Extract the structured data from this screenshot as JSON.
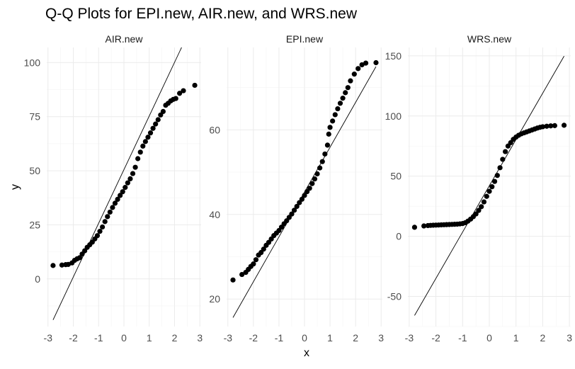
{
  "chart_data": {
    "type": "scatter",
    "title": "Q-Q Plots for EPI.new, AIR.new, and WRS.new",
    "xlabel": "x",
    "ylabel": "y",
    "grid": true,
    "x_ticks": [
      -3,
      -2,
      -1,
      0,
      1,
      2,
      3
    ],
    "xlim": [
      -3.05,
      3.05
    ],
    "panels": [
      {
        "name": "AIR.new",
        "ylim": [
          -22,
          107
        ],
        "y_ticks": [
          0,
          25,
          50,
          75,
          100
        ],
        "line": {
          "slope": 24.8,
          "intercept": 50.5
        },
        "points": [
          [
            -2.8,
            6.2
          ],
          [
            -2.45,
            6.4
          ],
          [
            -2.3,
            6.6
          ],
          [
            -2.2,
            6.7
          ],
          [
            -2.05,
            7.4
          ],
          [
            -1.95,
            8.6
          ],
          [
            -1.85,
            9.3
          ],
          [
            -1.75,
            9.8
          ],
          [
            -1.65,
            11.5
          ],
          [
            -1.55,
            13.0
          ],
          [
            -1.45,
            14.6
          ],
          [
            -1.35,
            15.8
          ],
          [
            -1.25,
            17.0
          ],
          [
            -1.15,
            18.5
          ],
          [
            -1.05,
            20.0
          ],
          [
            -0.95,
            22.0
          ],
          [
            -0.85,
            24.0
          ],
          [
            -0.75,
            26.5
          ],
          [
            -0.65,
            28.8
          ],
          [
            -0.55,
            30.9
          ],
          [
            -0.45,
            33.0
          ],
          [
            -0.35,
            35.0
          ],
          [
            -0.25,
            36.8
          ],
          [
            -0.15,
            38.6
          ],
          [
            -0.05,
            40.3
          ],
          [
            0.05,
            42.3
          ],
          [
            0.15,
            44.4
          ],
          [
            0.25,
            46.3
          ],
          [
            0.35,
            48.7
          ],
          [
            0.45,
            51.6
          ],
          [
            0.55,
            55.6
          ],
          [
            0.65,
            58.6
          ],
          [
            0.75,
            61.4
          ],
          [
            0.85,
            63.5
          ],
          [
            0.95,
            65.5
          ],
          [
            1.05,
            67.5
          ],
          [
            1.15,
            69.6
          ],
          [
            1.25,
            71.6
          ],
          [
            1.35,
            73.6
          ],
          [
            1.45,
            75.8
          ],
          [
            1.55,
            77.4
          ],
          [
            1.65,
            80.3
          ],
          [
            1.75,
            81.2
          ],
          [
            1.85,
            82.3
          ],
          [
            1.95,
            83.0
          ],
          [
            2.05,
            83.4
          ],
          [
            2.2,
            85.8
          ],
          [
            2.35,
            87.0
          ],
          [
            2.8,
            89.5
          ]
        ]
      },
      {
        "name": "EPI.new",
        "ylim": [
          13.5,
          79.5
        ],
        "y_ticks": [
          20,
          40,
          60
        ],
        "line": {
          "slope": 10.6,
          "intercept": 45.3
        },
        "points": [
          [
            -2.8,
            24.5
          ],
          [
            -2.45,
            25.8
          ],
          [
            -2.3,
            26.3
          ],
          [
            -2.2,
            27.0
          ],
          [
            -2.1,
            27.7
          ],
          [
            -2.0,
            28.3
          ],
          [
            -1.9,
            29.3
          ],
          [
            -1.8,
            30.4
          ],
          [
            -1.7,
            31.0
          ],
          [
            -1.6,
            31.8
          ],
          [
            -1.5,
            32.7
          ],
          [
            -1.4,
            33.4
          ],
          [
            -1.3,
            34.2
          ],
          [
            -1.2,
            35.0
          ],
          [
            -1.1,
            35.6
          ],
          [
            -1.0,
            36.2
          ],
          [
            -0.9,
            37.0
          ],
          [
            -0.8,
            37.8
          ],
          [
            -0.7,
            38.5
          ],
          [
            -0.6,
            39.3
          ],
          [
            -0.5,
            40.1
          ],
          [
            -0.4,
            41.0
          ],
          [
            -0.3,
            41.9
          ],
          [
            -0.2,
            42.8
          ],
          [
            -0.1,
            43.6
          ],
          [
            0.0,
            44.5
          ],
          [
            0.1,
            45.4
          ],
          [
            0.2,
            46.2
          ],
          [
            0.3,
            47.3
          ],
          [
            0.4,
            48.4
          ],
          [
            0.5,
            49.6
          ],
          [
            0.6,
            51.0
          ],
          [
            0.7,
            52.5
          ],
          [
            0.8,
            54.3
          ],
          [
            0.9,
            56.4
          ],
          [
            0.95,
            59.0
          ],
          [
            1.0,
            60.6
          ],
          [
            1.1,
            62.1
          ],
          [
            1.2,
            63.6
          ],
          [
            1.3,
            65.0
          ],
          [
            1.4,
            66.3
          ],
          [
            1.5,
            67.5
          ],
          [
            1.6,
            68.8
          ],
          [
            1.7,
            70.0
          ],
          [
            1.8,
            71.6
          ],
          [
            1.95,
            73.2
          ],
          [
            2.1,
            74.5
          ],
          [
            2.25,
            75.4
          ],
          [
            2.4,
            75.8
          ],
          [
            2.8,
            75.9
          ]
        ]
      },
      {
        "name": "WRS.new",
        "ylim": [
          -75,
          157
        ],
        "y_ticks": [
          -50,
          0,
          50,
          100,
          150
        ],
        "line": {
          "slope": 38.5,
          "intercept": 42.0
        },
        "points": [
          [
            -2.8,
            7.5
          ],
          [
            -2.45,
            8.6
          ],
          [
            -2.3,
            8.9
          ],
          [
            -2.2,
            9.1
          ],
          [
            -2.1,
            9.2
          ],
          [
            -2.0,
            9.3
          ],
          [
            -1.9,
            9.4
          ],
          [
            -1.8,
            9.5
          ],
          [
            -1.7,
            9.6
          ],
          [
            -1.6,
            9.7
          ],
          [
            -1.5,
            9.8
          ],
          [
            -1.4,
            9.9
          ],
          [
            -1.3,
            10.0
          ],
          [
            -1.2,
            10.1
          ],
          [
            -1.1,
            10.3
          ],
          [
            -1.0,
            10.6
          ],
          [
            -0.9,
            11.3
          ],
          [
            -0.8,
            12.6
          ],
          [
            -0.7,
            14.3
          ],
          [
            -0.6,
            16.3
          ],
          [
            -0.5,
            18.6
          ],
          [
            -0.4,
            21.5
          ],
          [
            -0.3,
            24.6
          ],
          [
            -0.2,
            28.6
          ],
          [
            -0.1,
            33.2
          ],
          [
            0.0,
            37.4
          ],
          [
            0.1,
            41.2
          ],
          [
            0.2,
            45.6
          ],
          [
            0.3,
            50.6
          ],
          [
            0.4,
            57.0
          ],
          [
            0.5,
            64.0
          ],
          [
            0.6,
            70.4
          ],
          [
            0.7,
            75.0
          ],
          [
            0.8,
            77.8
          ],
          [
            0.9,
            80.6
          ],
          [
            1.0,
            82.5
          ],
          [
            1.1,
            84.0
          ],
          [
            1.2,
            85.2
          ],
          [
            1.3,
            86.0
          ],
          [
            1.4,
            86.8
          ],
          [
            1.5,
            87.6
          ],
          [
            1.6,
            88.4
          ],
          [
            1.7,
            89.2
          ],
          [
            1.8,
            90.0
          ],
          [
            1.9,
            90.6
          ],
          [
            2.0,
            91.1
          ],
          [
            2.15,
            91.5
          ],
          [
            2.3,
            91.8
          ],
          [
            2.45,
            92.0
          ],
          [
            2.8,
            92.3
          ]
        ]
      }
    ]
  }
}
